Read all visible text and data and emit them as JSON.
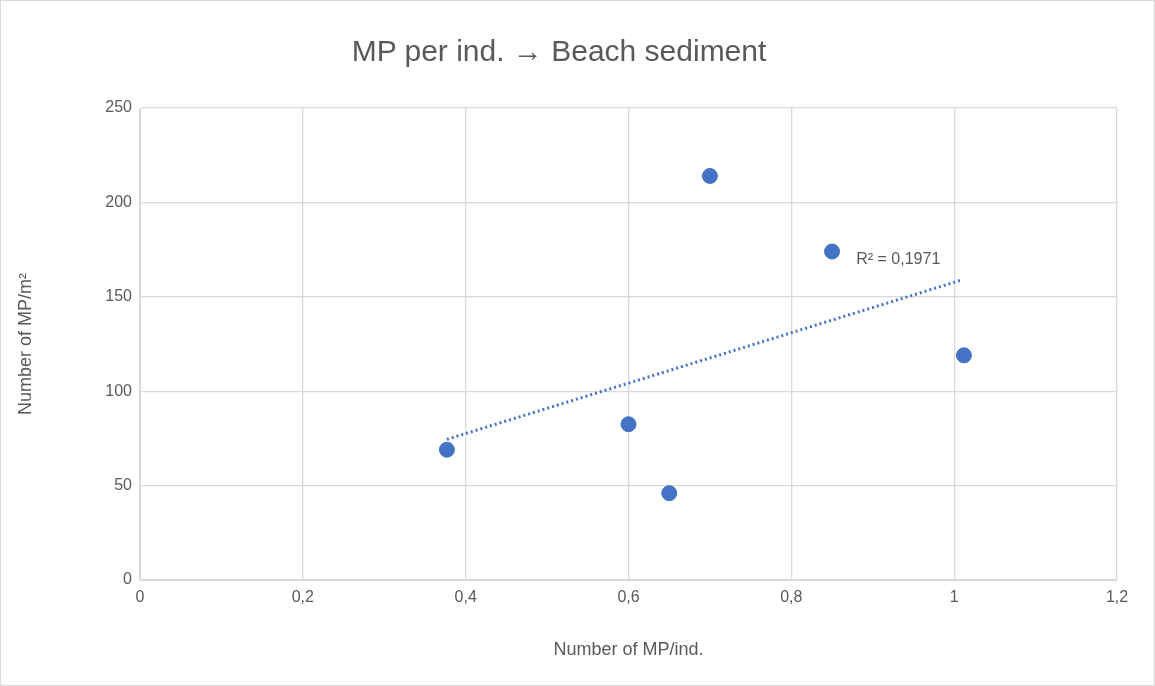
{
  "chart_data": {
    "type": "scatter",
    "title": "MP per ind. → Beach sediment",
    "xlabel": "Number of MP/ind.",
    "ylabel": "Number of MP/m²",
    "x": [
      0.377,
      0.6,
      0.65,
      0.7,
      0.85,
      1.012
    ],
    "series": [
      {
        "color": "#4472c4",
        "values": [
          69,
          82.5,
          46,
          214,
          174,
          119
        ],
        "marker": "circle"
      },
      {
        "type": "line",
        "color": "#4472c4",
        "x": [
          0.377,
          1.01
        ],
        "values": [
          74.5,
          159
        ],
        "line_style": "dotted",
        "marker": "none"
      }
    ],
    "xlim": [
      0,
      1.2
    ],
    "xticks": [
      0,
      {
        "value": 0.2,
        "label": "0,2"
      },
      {
        "value": 0.4,
        "label": "0,4"
      },
      {
        "value": 0.6,
        "label": "0,6"
      },
      {
        "value": 0.8,
        "label": "0,8"
      },
      1,
      {
        "value": 1.2,
        "label": "1,2"
      }
    ],
    "ylim": [
      0,
      250
    ],
    "yticks": [
      0,
      50,
      100,
      150,
      200,
      250
    ],
    "grid": true,
    "legend": false,
    "annotations": [
      "R² = 0,1971"
    ]
  }
}
